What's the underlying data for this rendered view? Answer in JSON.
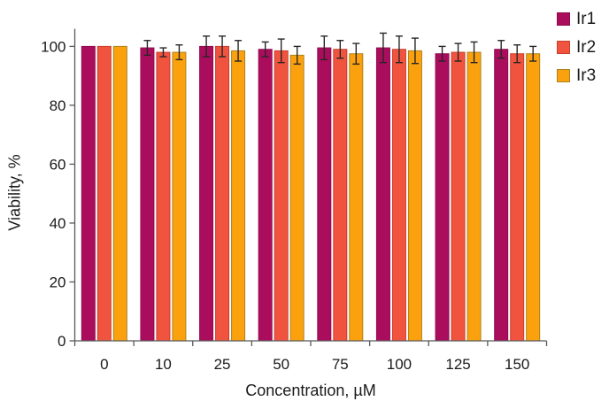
{
  "figure": {
    "background": "#ffffff",
    "axis_color": "#595959",
    "text_color": "#1a1a1a",
    "error_bar_color": "#262626"
  },
  "chart_data": {
    "type": "bar",
    "title": "",
    "xlabel": "Concentration, µM",
    "ylabel": "Viability, %",
    "categories": [
      "0",
      "10",
      "25",
      "50",
      "75",
      "100",
      "125",
      "150"
    ],
    "series": [
      {
        "name": "Ir1",
        "color": "#AB0D5D",
        "border": "#8F0A4E",
        "values": [
          100,
          99.5,
          100,
          99,
          99.5,
          99.5,
          97.5,
          99
        ],
        "errors": [
          0,
          2.5,
          3.5,
          2.5,
          4,
          5,
          2.5,
          3
        ]
      },
      {
        "name": "Ir2",
        "color": "#F0543F",
        "border": "#C93E2C",
        "values": [
          100,
          98,
          100,
          98.5,
          99,
          99,
          98,
          97.5
        ],
        "errors": [
          0,
          1.5,
          3.5,
          4,
          3,
          4.5,
          3,
          3
        ]
      },
      {
        "name": "Ir3",
        "color": "#FCA10E",
        "border": "#A9821F",
        "values": [
          100,
          98,
          98.5,
          97,
          97.5,
          98.5,
          98,
          97.5
        ],
        "errors": [
          0,
          2.5,
          3.5,
          3,
          3.5,
          4.3,
          3.5,
          2.5
        ]
      }
    ],
    "ylim": [
      0,
      106
    ],
    "yticks": [
      0,
      20,
      40,
      60,
      80,
      100
    ],
    "grid": false,
    "legend_position": "right-top"
  }
}
